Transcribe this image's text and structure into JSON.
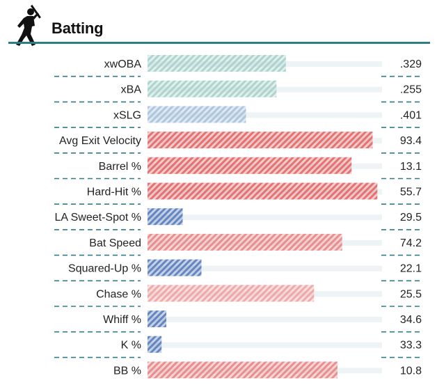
{
  "section": {
    "title": "Batting",
    "icon": "batter-silhouette-icon"
  },
  "colors": {
    "rule": "#2e7d86",
    "track": "#eef3f6",
    "good_red": "#e36a6a",
    "avg_red": "#f0a3a3",
    "neutral_teal": "#a9d2cc",
    "neutral_blue": "#a9c3dc",
    "poor_blue": "#5b7fbc"
  },
  "chart_data": {
    "type": "bar",
    "orientation": "horizontal",
    "scale": "percentile",
    "xlim": [
      0,
      100
    ],
    "categories": [
      "xwOBA",
      "xBA",
      "xSLG",
      "Avg Exit Velocity",
      "Barrel %",
      "Hard-Hit %",
      "LA Sweet-Spot %",
      "Bat Speed",
      "Squared-Up %",
      "Chase %",
      "Whiff %",
      "K %",
      "BB %"
    ],
    "value_labels": [
      ".329",
      ".255",
      ".401",
      "93.4",
      "13.1",
      "55.7",
      "29.5",
      "74.2",
      "22.1",
      "25.5",
      "34.6",
      "33.3",
      "10.8"
    ],
    "values": [
      59,
      55,
      42,
      96,
      87,
      98,
      15,
      83,
      23,
      71,
      8,
      6,
      81
    ],
    "bar_colors": [
      "#a9d2cc",
      "#a9d2cc",
      "#a9c3dc",
      "#e36a6a",
      "#e36a6a",
      "#e36a6a",
      "#5b7fbc",
      "#e88888",
      "#5b7fbc",
      "#f0a3a3",
      "#5b7fbc",
      "#5b7fbc",
      "#e88888"
    ],
    "grid": false
  }
}
